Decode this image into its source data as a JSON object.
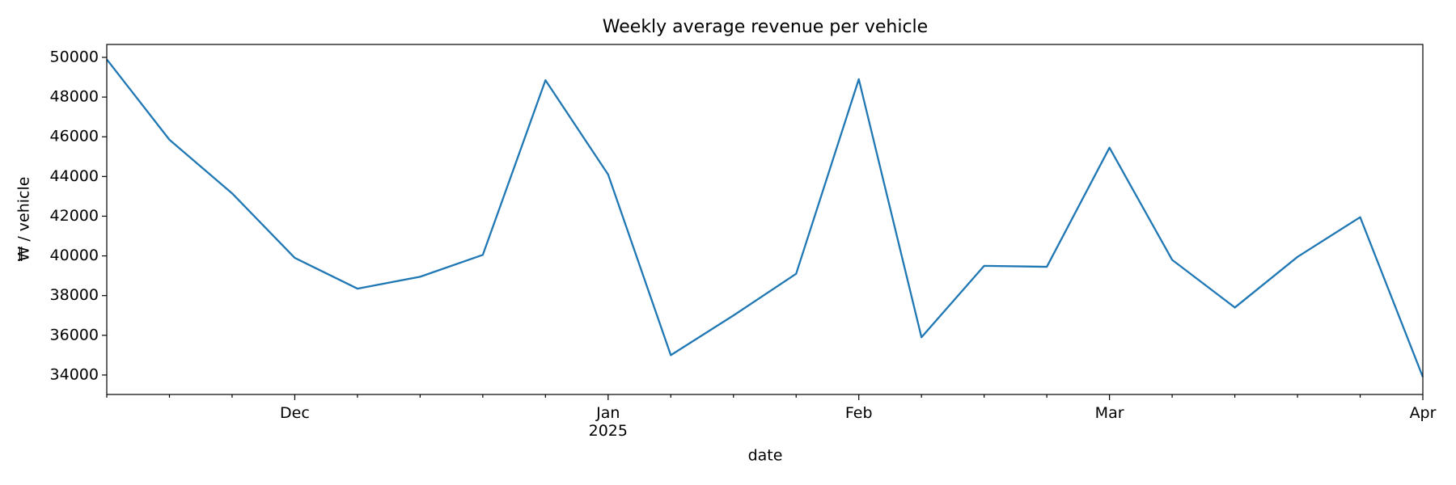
{
  "chart_data": {
    "type": "line",
    "title": "Weekly average revenue per vehicle",
    "x_label": "date",
    "y_label": "₩ / vehicle",
    "categories": [
      null,
      null,
      null,
      "Dec",
      null,
      null,
      null,
      null,
      "Jan\n2025",
      null,
      null,
      null,
      "Feb",
      null,
      null,
      null,
      "Mar",
      null,
      null,
      null,
      null,
      "Apr"
    ],
    "series": [
      {
        "name": "revenue per vehicle",
        "color": "#1f77b4",
        "values": [
          49900,
          45850,
          43150,
          39900,
          38350,
          38950,
          40050,
          48850,
          44100,
          35000,
          37000,
          39100,
          48900,
          35900,
          39500,
          39450,
          45450,
          39800,
          37400,
          39950,
          41950,
          33900
        ]
      }
    ],
    "ylim": [
      33020,
      50650
    ],
    "yticks": [
      34000,
      36000,
      38000,
      40000,
      42000,
      44000,
      46000,
      48000,
      50000
    ],
    "grid": false
  }
}
